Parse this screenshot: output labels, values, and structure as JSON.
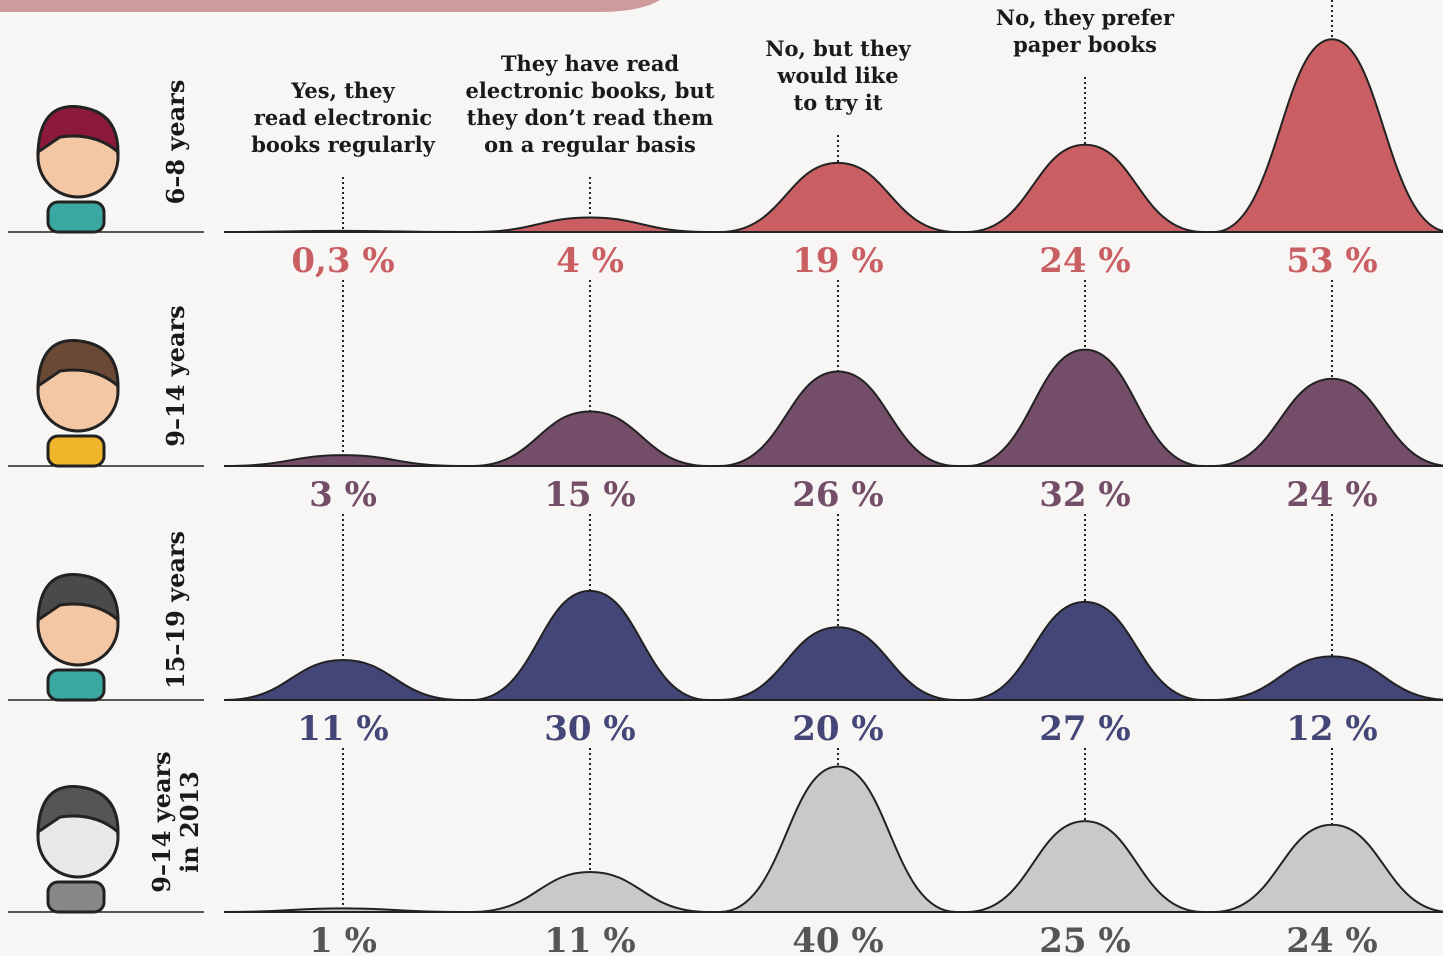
{
  "chart_data": {
    "type": "ridge",
    "categories": [
      "Yes, they\nread electronic\nbooks regularly",
      "They have read\nelectronic books, but\nthey don’t read them\non a regular basis",
      "No, but they\nwould like\nto try it",
      "No, they prefer\npaper books",
      null
    ],
    "ylim": [
      0,
      55
    ],
    "series": [
      {
        "name": "6–8 years",
        "color": "#c95f62",
        "values": [
          0.3,
          4,
          19,
          24,
          53
        ],
        "value_labels": [
          "0,3 %",
          "4 %",
          "19 %",
          "24 %",
          "53 %"
        ]
      },
      {
        "name": "9–14 years",
        "color": "#744e68",
        "values": [
          3,
          15,
          26,
          32,
          24
        ],
        "value_labels": [
          "3 %",
          "15 %",
          "26 %",
          "32 %",
          "24 %"
        ]
      },
      {
        "name": "15–19 years",
        "color": "#444677",
        "values": [
          11,
          30,
          20,
          27,
          12
        ],
        "value_labels": [
          "11 %",
          "30 %",
          "20 %",
          "27 %",
          "12 %"
        ]
      },
      {
        "name": "9–14 years\nin 2013",
        "color": "#c9c9c9",
        "values": [
          1,
          11,
          40,
          25,
          24
        ],
        "value_labels": [
          "1 %",
          "11 %",
          "40 %",
          "25 %",
          "24 %"
        ]
      }
    ]
  }
}
